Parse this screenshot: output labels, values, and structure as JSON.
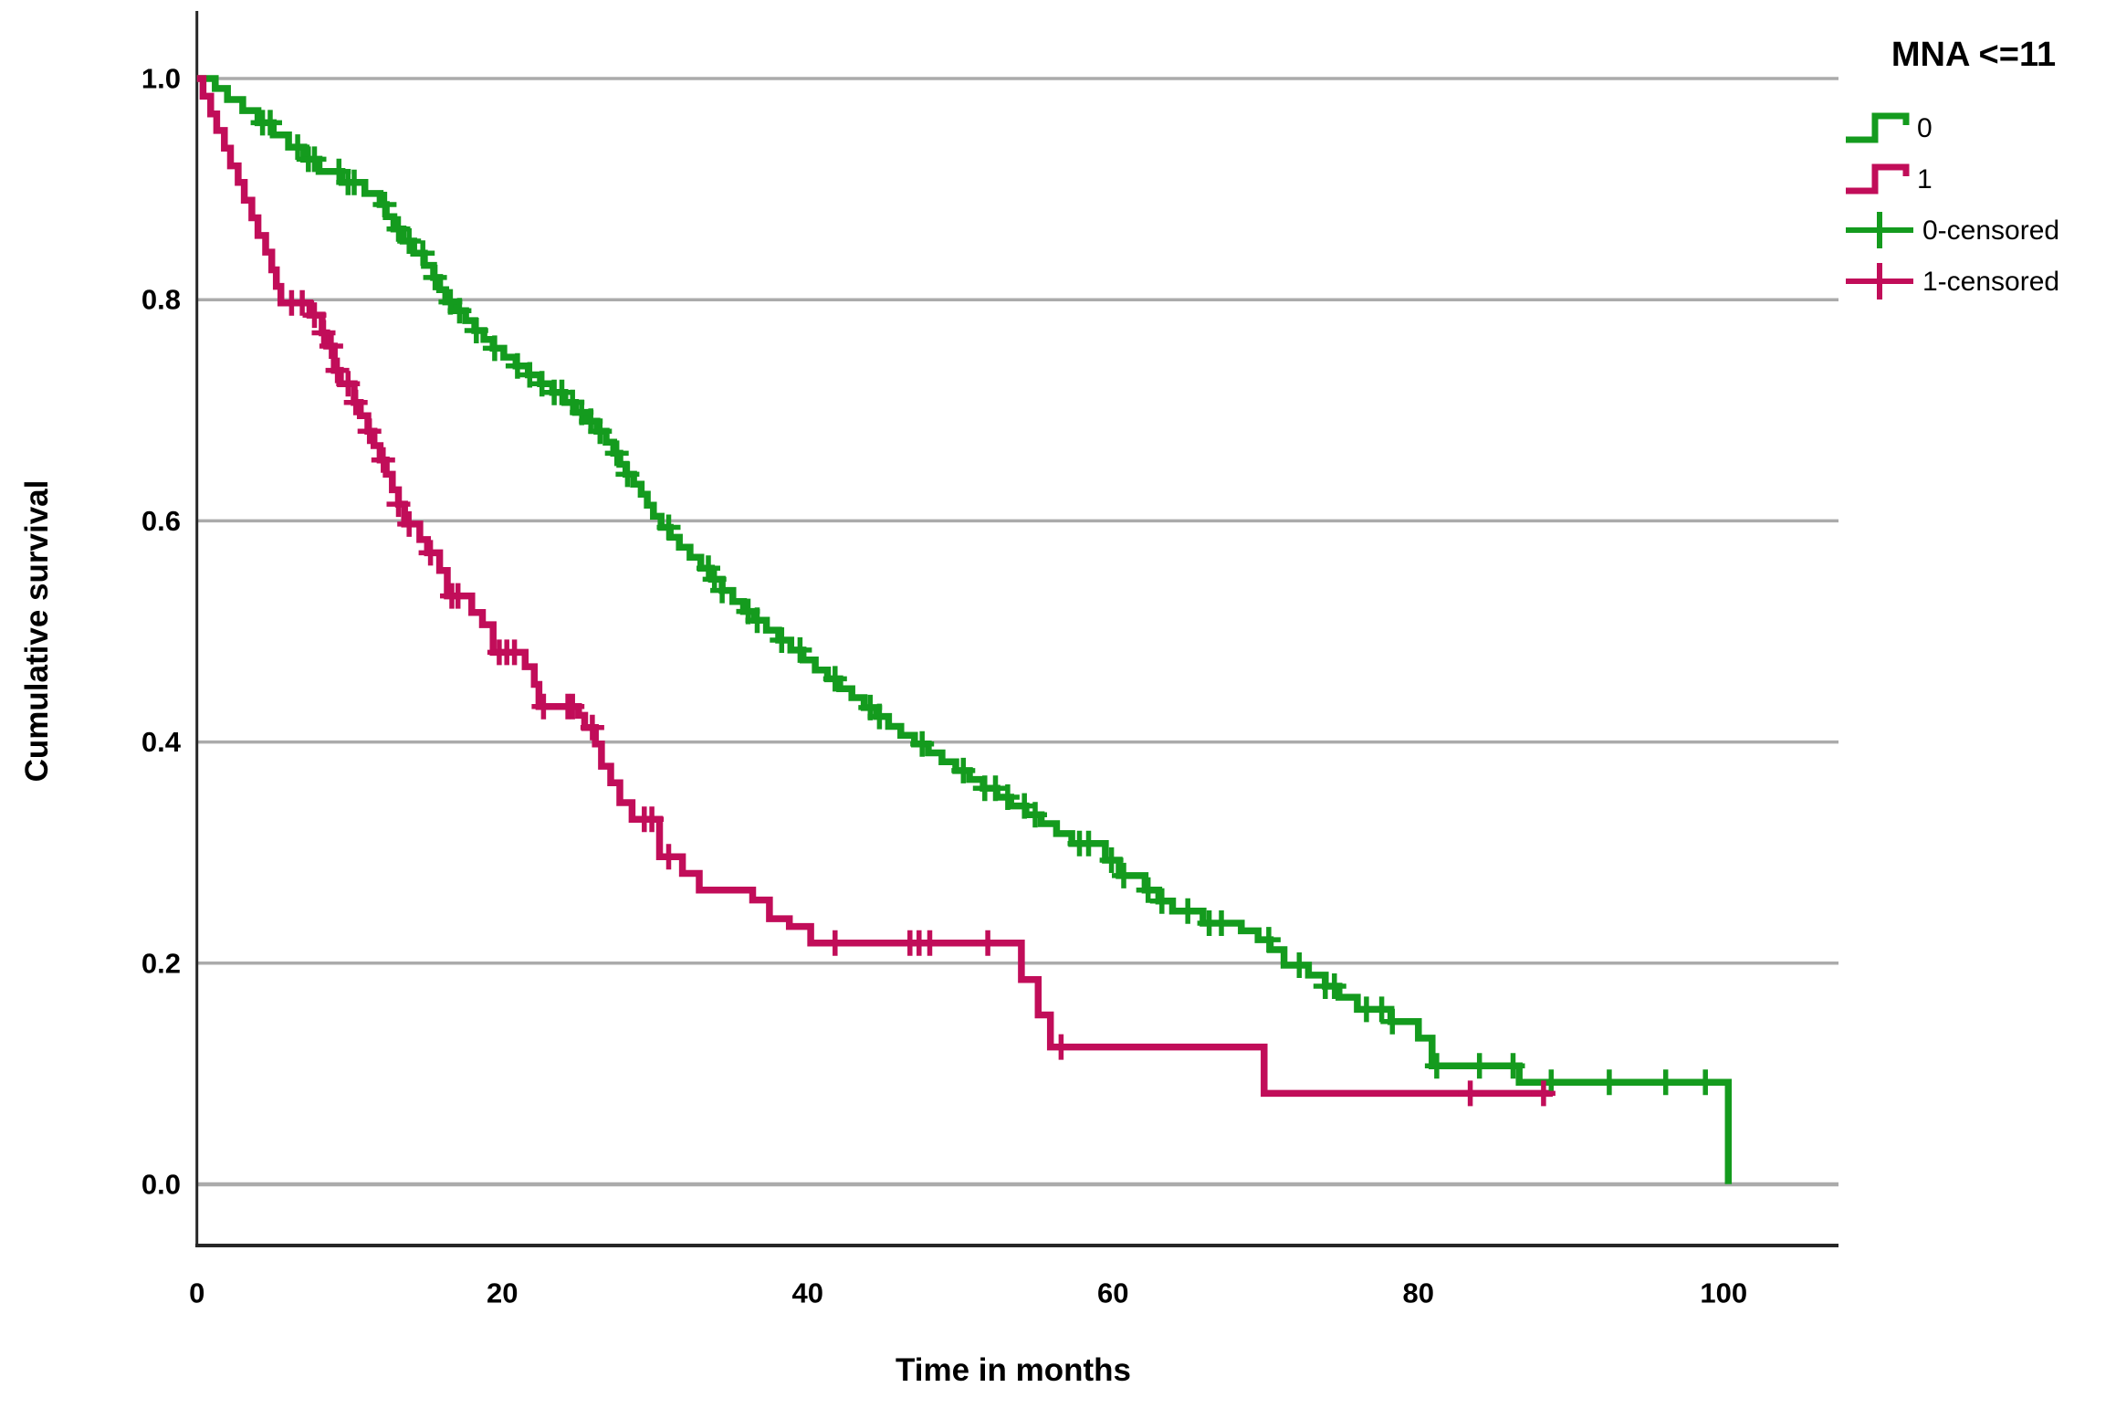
{
  "legend": {
    "title": "MNA <=11",
    "items": [
      {
        "label": "0",
        "color": "#149B1E",
        "type": "step-swatch"
      },
      {
        "label": "1",
        "color": "#C10D59",
        "type": "step-swatch"
      },
      {
        "label": "0-censored",
        "color": "#149B1E",
        "type": "censor-swatch"
      },
      {
        "label": "1-censored",
        "color": "#C10D59",
        "type": "censor-swatch"
      }
    ]
  },
  "axes": {
    "x_label": "Time in months",
    "y_label": "Cumulative survival",
    "x_ticks": [
      "0",
      "20",
      "40",
      "60",
      "80",
      "100"
    ],
    "y_ticks": [
      "1.0",
      "0.8",
      "0.6",
      "0.4",
      "0.2",
      "0.0"
    ]
  },
  "colors": {
    "group0": "#149B1E",
    "group1": "#C10D59",
    "gridline": "#ABABAB",
    "axis": "#262626",
    "background": "#FFFFFF"
  },
  "chart_data": {
    "type": "line",
    "subtype": "kaplan-meier-step",
    "title": "MNA <=11",
    "xlabel": "Time in months",
    "ylabel": "Cumulative survival",
    "xlim": [
      0,
      107.5
    ],
    "ylim": [
      0,
      1.06
    ],
    "x_tick_values": [
      0,
      20,
      40,
      60,
      80,
      100
    ],
    "y_tick_values": [
      1.0,
      0.8,
      0.6,
      0.4,
      0.2,
      0.0
    ],
    "grid": "horizontal-only",
    "legend_position": "top-right",
    "series": [
      {
        "name": "0",
        "color": "#149B1E",
        "steps": [
          [
            0,
            1.0
          ],
          [
            1.2,
            0.991
          ],
          [
            2.0,
            0.981
          ],
          [
            3.0,
            0.971
          ],
          [
            4.0,
            0.96
          ],
          [
            5.0,
            0.949
          ],
          [
            6.0,
            0.938
          ],
          [
            7.0,
            0.927
          ],
          [
            8.0,
            0.916
          ],
          [
            9.5,
            0.906
          ],
          [
            11.0,
            0.896
          ],
          [
            12.0,
            0.886
          ],
          [
            12.4,
            0.875
          ],
          [
            12.9,
            0.864
          ],
          [
            13.5,
            0.853
          ],
          [
            14.2,
            0.842
          ],
          [
            14.9,
            0.831
          ],
          [
            15.5,
            0.82
          ],
          [
            15.9,
            0.809
          ],
          [
            16.3,
            0.798
          ],
          [
            16.9,
            0.79
          ],
          [
            17.6,
            0.781
          ],
          [
            18.2,
            0.772
          ],
          [
            18.8,
            0.764
          ],
          [
            19.4,
            0.756
          ],
          [
            20.1,
            0.748
          ],
          [
            20.9,
            0.74
          ],
          [
            21.7,
            0.732
          ],
          [
            22.5,
            0.724
          ],
          [
            23.3,
            0.716
          ],
          [
            24.1,
            0.707
          ],
          [
            24.8,
            0.698
          ],
          [
            25.5,
            0.69
          ],
          [
            26.2,
            0.681
          ],
          [
            26.8,
            0.671
          ],
          [
            27.3,
            0.661
          ],
          [
            27.7,
            0.651
          ],
          [
            28.1,
            0.642
          ],
          [
            28.6,
            0.633
          ],
          [
            29.1,
            0.624
          ],
          [
            29.5,
            0.614
          ],
          [
            29.9,
            0.604
          ],
          [
            30.4,
            0.594
          ],
          [
            31.0,
            0.585
          ],
          [
            31.6,
            0.576
          ],
          [
            32.3,
            0.567
          ],
          [
            33.0,
            0.557
          ],
          [
            33.7,
            0.547
          ],
          [
            34.4,
            0.537
          ],
          [
            35.1,
            0.527
          ],
          [
            35.8,
            0.518
          ],
          [
            36.5,
            0.51
          ],
          [
            37.3,
            0.501
          ],
          [
            38.1,
            0.492
          ],
          [
            38.9,
            0.483
          ],
          [
            39.7,
            0.474
          ],
          [
            40.5,
            0.465
          ],
          [
            41.3,
            0.457
          ],
          [
            42.1,
            0.448
          ],
          [
            42.9,
            0.44
          ],
          [
            43.7,
            0.431
          ],
          [
            44.5,
            0.423
          ],
          [
            45.3,
            0.414
          ],
          [
            46.1,
            0.406
          ],
          [
            47.0,
            0.398
          ],
          [
            47.9,
            0.39
          ],
          [
            48.8,
            0.382
          ],
          [
            49.7,
            0.374
          ],
          [
            50.6,
            0.366
          ],
          [
            51.5,
            0.358
          ],
          [
            52.4,
            0.35
          ],
          [
            53.3,
            0.342
          ],
          [
            54.3,
            0.334
          ],
          [
            55.3,
            0.326
          ],
          [
            56.3,
            0.317
          ],
          [
            57.3,
            0.308
          ],
          [
            59.5,
            0.293
          ],
          [
            60.4,
            0.279
          ],
          [
            62.1,
            0.266
          ],
          [
            63.0,
            0.256
          ],
          [
            63.9,
            0.247
          ],
          [
            65.9,
            0.236
          ],
          [
            68.4,
            0.229
          ],
          [
            69.5,
            0.221
          ],
          [
            70.3,
            0.212
          ],
          [
            71.2,
            0.198
          ],
          [
            72.8,
            0.189
          ],
          [
            73.9,
            0.179
          ],
          [
            74.8,
            0.169
          ],
          [
            76.0,
            0.158
          ],
          [
            78.2,
            0.147
          ],
          [
            80.0,
            0.132
          ],
          [
            80.9,
            0.107
          ],
          [
            86.6,
            0.092
          ]
        ],
        "censored_times": [
          4.3,
          4.8,
          6.6,
          7.3,
          7.7,
          9.3,
          9.9,
          10.3,
          12.3,
          13.2,
          13.9,
          14.8,
          15.6,
          16.6,
          17.2,
          18.3,
          19.5,
          21.0,
          21.8,
          22.6,
          23.4,
          23.9,
          24.6,
          25.2,
          25.8,
          26.4,
          27.5,
          28.2,
          30.9,
          33.5,
          33.9,
          34.4,
          36.1,
          36.7,
          38.3,
          39.5,
          41.8,
          44.1,
          44.7,
          47.5,
          50.2,
          51.6,
          52.3,
          53.1,
          54.2,
          54.9,
          57.8,
          58.4,
          59.9,
          60.7,
          62.3,
          63.2,
          64.9,
          66.3,
          67.1,
          70.2,
          72.2,
          73.9,
          74.5,
          76.6,
          77.6,
          78.3,
          81.2,
          84.0,
          86.2,
          88.7,
          92.5,
          96.2,
          98.8
        ],
        "drop_to_zero_at": 100.3
      },
      {
        "name": "1",
        "color": "#C10D59",
        "steps": [
          [
            0,
            1.0
          ],
          [
            0.4,
            0.984
          ],
          [
            0.9,
            0.968
          ],
          [
            1.3,
            0.953
          ],
          [
            1.8,
            0.937
          ],
          [
            2.2,
            0.921
          ],
          [
            2.7,
            0.906
          ],
          [
            3.1,
            0.89
          ],
          [
            3.6,
            0.874
          ],
          [
            4.0,
            0.858
          ],
          [
            4.5,
            0.843
          ],
          [
            4.9,
            0.827
          ],
          [
            5.2,
            0.812
          ],
          [
            5.5,
            0.797
          ],
          [
            7.4,
            0.786
          ],
          [
            8.2,
            0.77
          ],
          [
            8.5,
            0.758
          ],
          [
            9.0,
            0.736
          ],
          [
            9.4,
            0.724
          ],
          [
            10.3,
            0.707
          ],
          [
            10.7,
            0.695
          ],
          [
            11.2,
            0.681
          ],
          [
            11.6,
            0.668
          ],
          [
            12.0,
            0.655
          ],
          [
            12.4,
            0.642
          ],
          [
            12.8,
            0.628
          ],
          [
            13.2,
            0.615
          ],
          [
            13.6,
            0.597
          ],
          [
            14.6,
            0.583
          ],
          [
            15.1,
            0.571
          ],
          [
            15.9,
            0.555
          ],
          [
            16.4,
            0.532
          ],
          [
            18.0,
            0.517
          ],
          [
            18.7,
            0.506
          ],
          [
            19.4,
            0.481
          ],
          [
            21.5,
            0.468
          ],
          [
            22.1,
            0.452
          ],
          [
            22.4,
            0.432
          ],
          [
            25.0,
            0.424
          ],
          [
            25.4,
            0.413
          ],
          [
            26.1,
            0.398
          ],
          [
            26.5,
            0.378
          ],
          [
            27.1,
            0.363
          ],
          [
            27.7,
            0.345
          ],
          [
            28.5,
            0.33
          ],
          [
            30.3,
            0.296
          ],
          [
            31.8,
            0.281
          ],
          [
            32.9,
            0.266
          ],
          [
            36.4,
            0.257
          ],
          [
            37.5,
            0.24
          ],
          [
            38.8,
            0.233
          ],
          [
            40.2,
            0.218
          ],
          [
            54.0,
            0.185
          ],
          [
            55.1,
            0.153
          ],
          [
            55.9,
            0.124
          ],
          [
            69.9,
            0.082
          ]
        ],
        "censored_times": [
          6.2,
          6.9,
          7.7,
          8.3,
          8.8,
          9.2,
          9.9,
          10.4,
          11.3,
          12.2,
          13.2,
          13.9,
          15.3,
          16.7,
          17.1,
          19.8,
          20.3,
          20.8,
          22.7,
          24.3,
          24.6,
          25.9,
          29.3,
          29.8,
          30.9,
          41.8,
          46.7,
          47.3,
          48.0,
          51.8,
          56.6,
          83.4,
          88.2
        ],
        "end_at": 88.8
      }
    ]
  }
}
